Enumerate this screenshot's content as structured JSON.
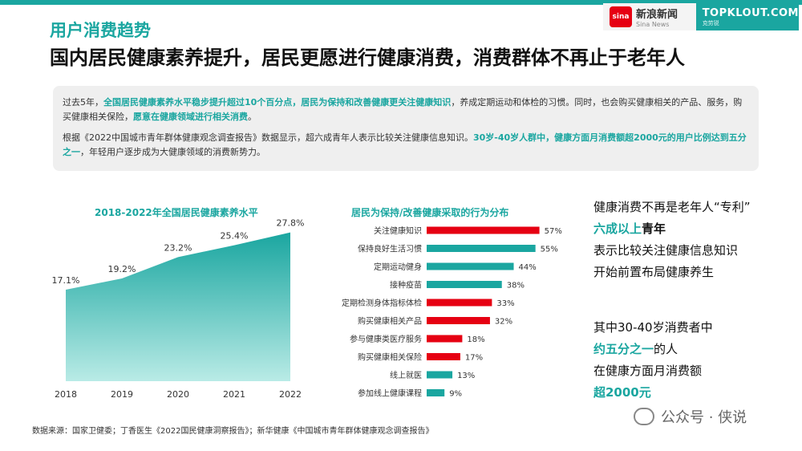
{
  "colors": {
    "accent": "#1aa6a0",
    "accent_light": "#b9ebe6",
    "red": "#e60012"
  },
  "header": {
    "section_title": "用户消费趋势",
    "headline": "国内居民健康素养提升，居民更愿进行健康消费，消费群体不再止于老年人"
  },
  "logo": {
    "sina_mark": "sina",
    "sina_cn": "新浪新闻",
    "sina_en": "Sina News",
    "topklout": "TOPKLOUT.COM",
    "topklout_sub": "克劳锐"
  },
  "info": {
    "p1_a": "过去5年，",
    "p1_b": "全国居民健康素养水平稳步提升超过10个百分点，居民为保持和改善健康更关注健康知识",
    "p1_c": "，养成定期运动和体检的习惯。同时，也会购买健康相关的产品、服务，购买健康相关保险，",
    "p1_d": "愿意在健康领域进行相关消费",
    "p1_e": "。",
    "p2_a": "根据《2022中国城市青年群体健康观念调查报告》数据显示，超六成青年人表示比较关注健康信息知识。",
    "p2_b": "30岁-40岁人群中，健康方面月消费额超2000元的用户比例达到五分之一",
    "p2_c": "，年轻用户逐步成为大健康领域的消费新势力。"
  },
  "chart_data": [
    {
      "type": "area",
      "title": "2018-2022年全国居民健康素养水平",
      "x": [
        "2018",
        "2019",
        "2020",
        "2021",
        "2022"
      ],
      "values": [
        17.1,
        19.2,
        23.2,
        25.4,
        27.8
      ],
      "value_labels": [
        "17.1%",
        "19.2%",
        "23.2%",
        "25.4%",
        "27.8%"
      ],
      "ylim": [
        0,
        30
      ]
    },
    {
      "type": "bar",
      "orientation": "horizontal",
      "title": "居民为保持/改善健康采取的行为分布",
      "categories": [
        "关注健康知识",
        "保持良好生活习惯",
        "定期运动健身",
        "接种疫苗",
        "定期检测身体指标体检",
        "购买健康相关产品",
        "参与健康类医疗服务",
        "购买健康相关保险",
        "线上就医",
        "参加线上健康课程"
      ],
      "values": [
        57,
        55,
        44,
        38,
        33,
        32,
        18,
        17,
        13,
        9
      ],
      "value_labels": [
        "57%",
        "55%",
        "44%",
        "38%",
        "33%",
        "32%",
        "18%",
        "17%",
        "13%",
        "9%"
      ],
      "bar_colors": [
        "#e60012",
        "#1aa6a0",
        "#1aa6a0",
        "#1aa6a0",
        "#e60012",
        "#e60012",
        "#e60012",
        "#e60012",
        "#1aa6a0",
        "#1aa6a0"
      ],
      "xlim": [
        0,
        60
      ]
    }
  ],
  "right_text": {
    "l1": "健康消费不再是老年人“专利”",
    "l2_hl": "六成以上",
    "l2_rest": "青年",
    "l3": "表示比较关注健康信息知识",
    "l4": "开始前置布局健康养生",
    "l5": "其中30-40岁消费者中",
    "l6_hl": "约五分之一",
    "l6_rest": "的人",
    "l7": "在健康方面月消费额",
    "l8_hl": "超2000元"
  },
  "source": "数据来源：国家卫健委；丁香医生《2022国民健康洞察报告》；新华健康《中国城市青年群体健康观念调查报告》",
  "watermark": "公众号 · 侠说"
}
